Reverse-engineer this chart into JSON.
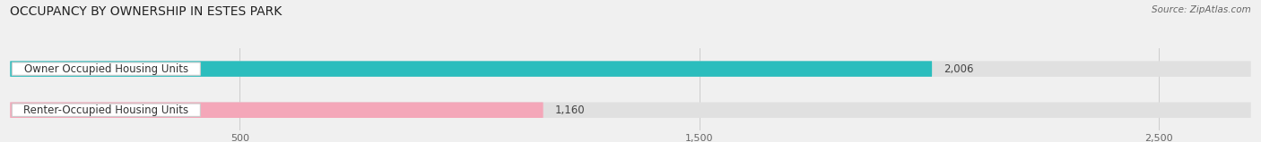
{
  "title": "OCCUPANCY BY OWNERSHIP IN ESTES PARK",
  "source": "Source: ZipAtlas.com",
  "categories": [
    "Owner Occupied Housing Units",
    "Renter-Occupied Housing Units"
  ],
  "values": [
    2006,
    1160
  ],
  "bar_colors": [
    "#2bbdbd",
    "#f4a7b9"
  ],
  "value_labels": [
    "2,006",
    "1,160"
  ],
  "xlim": [
    0,
    2700
  ],
  "xticks": [
    500,
    1500,
    2500
  ],
  "xtick_labels": [
    "500",
    "1,500",
    "2,500"
  ],
  "title_fontsize": 10,
  "source_fontsize": 7.5,
  "bar_label_fontsize": 8.5,
  "value_fontsize": 8.5,
  "background_color": "#f0f0f0",
  "bar_bg_color": "#e0e0e0"
}
